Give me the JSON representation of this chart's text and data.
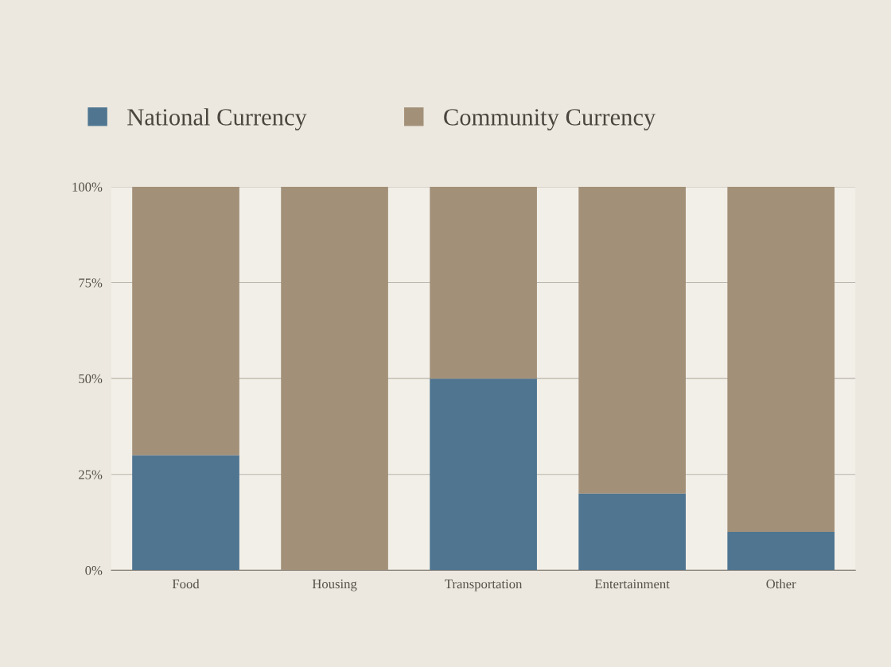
{
  "chart_data": {
    "type": "bar",
    "stacked": true,
    "categories": [
      "Food",
      "Housing",
      "Transportation",
      "Entertainment",
      "Other"
    ],
    "series": [
      {
        "name": "National Currency",
        "color": "#4f7590",
        "values": [
          30,
          0,
          50,
          20,
          10
        ]
      },
      {
        "name": "Community Currency",
        "color": "#a39079",
        "values": [
          70,
          100,
          50,
          80,
          90
        ]
      }
    ],
    "ylim": [
      0,
      100
    ],
    "yticks": [
      {
        "value": 0,
        "label": "0%"
      },
      {
        "value": 25,
        "label": "25%"
      },
      {
        "value": 50,
        "label": "50%"
      },
      {
        "value": 75,
        "label": "75%"
      },
      {
        "value": 100,
        "label": "100%"
      }
    ],
    "grid": "y",
    "legend": "top"
  }
}
